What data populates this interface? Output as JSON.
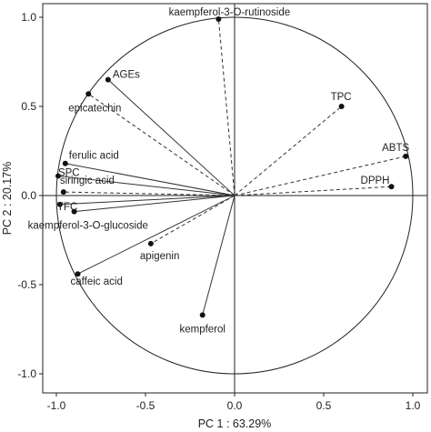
{
  "chart_data": {
    "type": "scatter",
    "title": "",
    "xlabel": "PC 1 : 63.29%",
    "ylabel": "PC 2 : 20.17%",
    "xlim": [
      -1.1,
      1.1
    ],
    "ylim": [
      -1.1,
      1.1
    ],
    "x_ticks": [
      "-1.0",
      "-0.5",
      "0.0",
      "0.5",
      "1.0"
    ],
    "y_ticks": [
      "1.0",
      "0.5",
      "0.0",
      "-0.5",
      "-1.0"
    ],
    "grid": false,
    "unit_circle": true,
    "series": [
      {
        "points": [
          {
            "label": "kaempferol-3-O-rutinoside",
            "x": -0.09,
            "y": 0.99,
            "line": "dashed"
          },
          {
            "label": "AGEs",
            "x": -0.71,
            "y": 0.65,
            "line": "solid"
          },
          {
            "label": "epicatechin",
            "x": -0.82,
            "y": 0.57,
            "line": "dashed"
          },
          {
            "label": "TPC",
            "x": 0.6,
            "y": 0.5,
            "line": "dashed"
          },
          {
            "label": "ABTS",
            "x": 0.96,
            "y": 0.22,
            "line": "dashed"
          },
          {
            "label": "DPPH",
            "x": 0.88,
            "y": 0.05,
            "line": "dashed"
          },
          {
            "label": "ferulic acid",
            "x": -0.95,
            "y": 0.18,
            "line": "solid"
          },
          {
            "label": "SPC",
            "x": -0.99,
            "y": 0.11,
            "line": "solid"
          },
          {
            "label": "siringic acid",
            "x": -0.96,
            "y": 0.02,
            "line": "dashed"
          },
          {
            "label": "TFC",
            "x": -0.98,
            "y": -0.05,
            "line": "solid"
          },
          {
            "label": "kaempferol-3-O-glucoside",
            "x": -0.9,
            "y": -0.09,
            "line": "solid"
          },
          {
            "label": "apigenin",
            "x": -0.47,
            "y": -0.27,
            "line": "dashed"
          },
          {
            "label": "caffeic acid",
            "x": -0.88,
            "y": -0.44,
            "line": "solid"
          },
          {
            "label": "kempferol",
            "x": -0.18,
            "y": -0.67,
            "line": "solid"
          }
        ]
      }
    ]
  }
}
